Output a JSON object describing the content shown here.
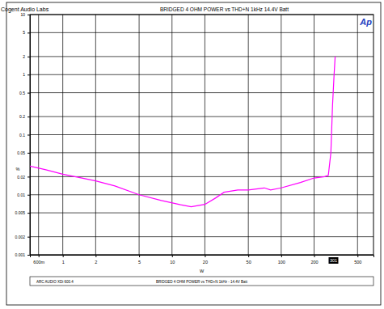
{
  "chart_data": {
    "type": "line",
    "title": "BRIDGED 4 OHM POWER vs THD+N 1kHz  14.4V Batt",
    "subtitle": "BRIDGED 4 OHM POWER vs THD+N 1kHz - 14.4V Batt",
    "x_label": "W",
    "y_label": "%",
    "annotations": [
      {
        "text": "Cogent Audio Labs"
      },
      {
        "text": "Ap"
      },
      {
        "text": "ARC AUDIO XDi 600.4"
      },
      {
        "text": "301",
        "x": 301
      }
    ],
    "x": [
      0.5,
      0.7,
      1,
      1.5,
      2,
      3,
      5,
      8,
      12,
      15,
      20,
      25,
      30,
      40,
      50,
      70,
      80,
      100,
      150,
      200,
      250,
      270,
      285,
      295,
      305,
      312
    ],
    "values": [
      0.03,
      0.026,
      0.022,
      0.019,
      0.017,
      0.014,
      0.01,
      0.008,
      0.0068,
      0.0063,
      0.0069,
      0.0088,
      0.011,
      0.012,
      0.012,
      0.013,
      0.012,
      0.013,
      0.016,
      0.019,
      0.02,
      0.021,
      0.05,
      0.3,
      1,
      2
    ],
    "color": "#ff00ff",
    "log": true,
    "grid": true,
    "xlim": [
      0.5,
      700
    ],
    "xticks": [
      {
        "value": 0.6,
        "label": "600m"
      },
      1,
      2,
      5,
      10,
      20,
      50,
      100,
      200,
      500
    ],
    "ylim": [
      0.001,
      10
    ],
    "yticks": [
      0.001,
      0.002,
      0.005,
      0.01,
      0.02,
      0.05,
      0.1,
      0.2,
      0.5,
      1,
      2,
      5,
      10
    ]
  }
}
